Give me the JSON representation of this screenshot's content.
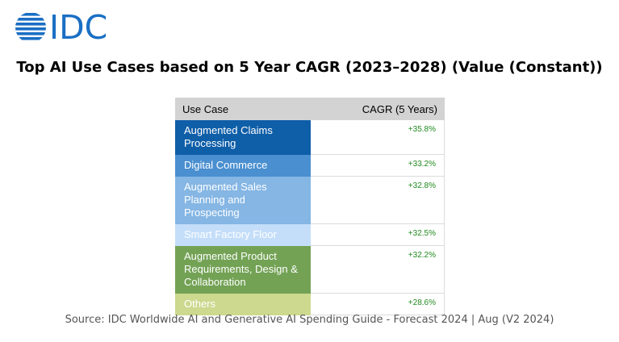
{
  "logo": {
    "text": "IDC"
  },
  "colors": {
    "brand": "#1a6fc4",
    "header_bg": "#d3d3d3",
    "positive": "#1f8a1f"
  },
  "chart_data": {
    "type": "table",
    "title": "Top AI Use Cases based on 5 Year CAGR (2023–2028) (Value (Constant))",
    "columns": [
      "Use Case",
      "CAGR (5 Years)"
    ],
    "rows": [
      {
        "use_case": "Augmented Claims Processing",
        "cagr_label": "+35.8%",
        "cagr": 35.8,
        "color": "#0f5ea8",
        "text_color": "#ffffff"
      },
      {
        "use_case": "Digital Commerce",
        "cagr_label": "+33.2%",
        "cagr": 33.2,
        "color": "#4a8fd0",
        "text_color": "#ffffff"
      },
      {
        "use_case": "Augmented Sales Planning and Prospecting",
        "cagr_label": "+32.8%",
        "cagr": 32.8,
        "color": "#85b6e4",
        "text_color": "#ffffff"
      },
      {
        "use_case": "Smart Factory Floor",
        "cagr_label": "+32.5%",
        "cagr": 32.5,
        "color": "#c4defa",
        "text_color": "#ffffff"
      },
      {
        "use_case": "Augmented Product Requirements, Design & Collaboration",
        "cagr_label": "+32.2%",
        "cagr": 32.2,
        "color": "#73a255",
        "text_color": "#ffffff"
      },
      {
        "use_case": "Others",
        "cagr_label": "+28.6%",
        "cagr": 28.6,
        "color": "#ccd98e",
        "text_color": "#ffffff"
      }
    ]
  },
  "source": "Source: IDC Worldwide AI and Generative AI Spending Guide - Forecast 2024 | Aug (V2 2024)"
}
